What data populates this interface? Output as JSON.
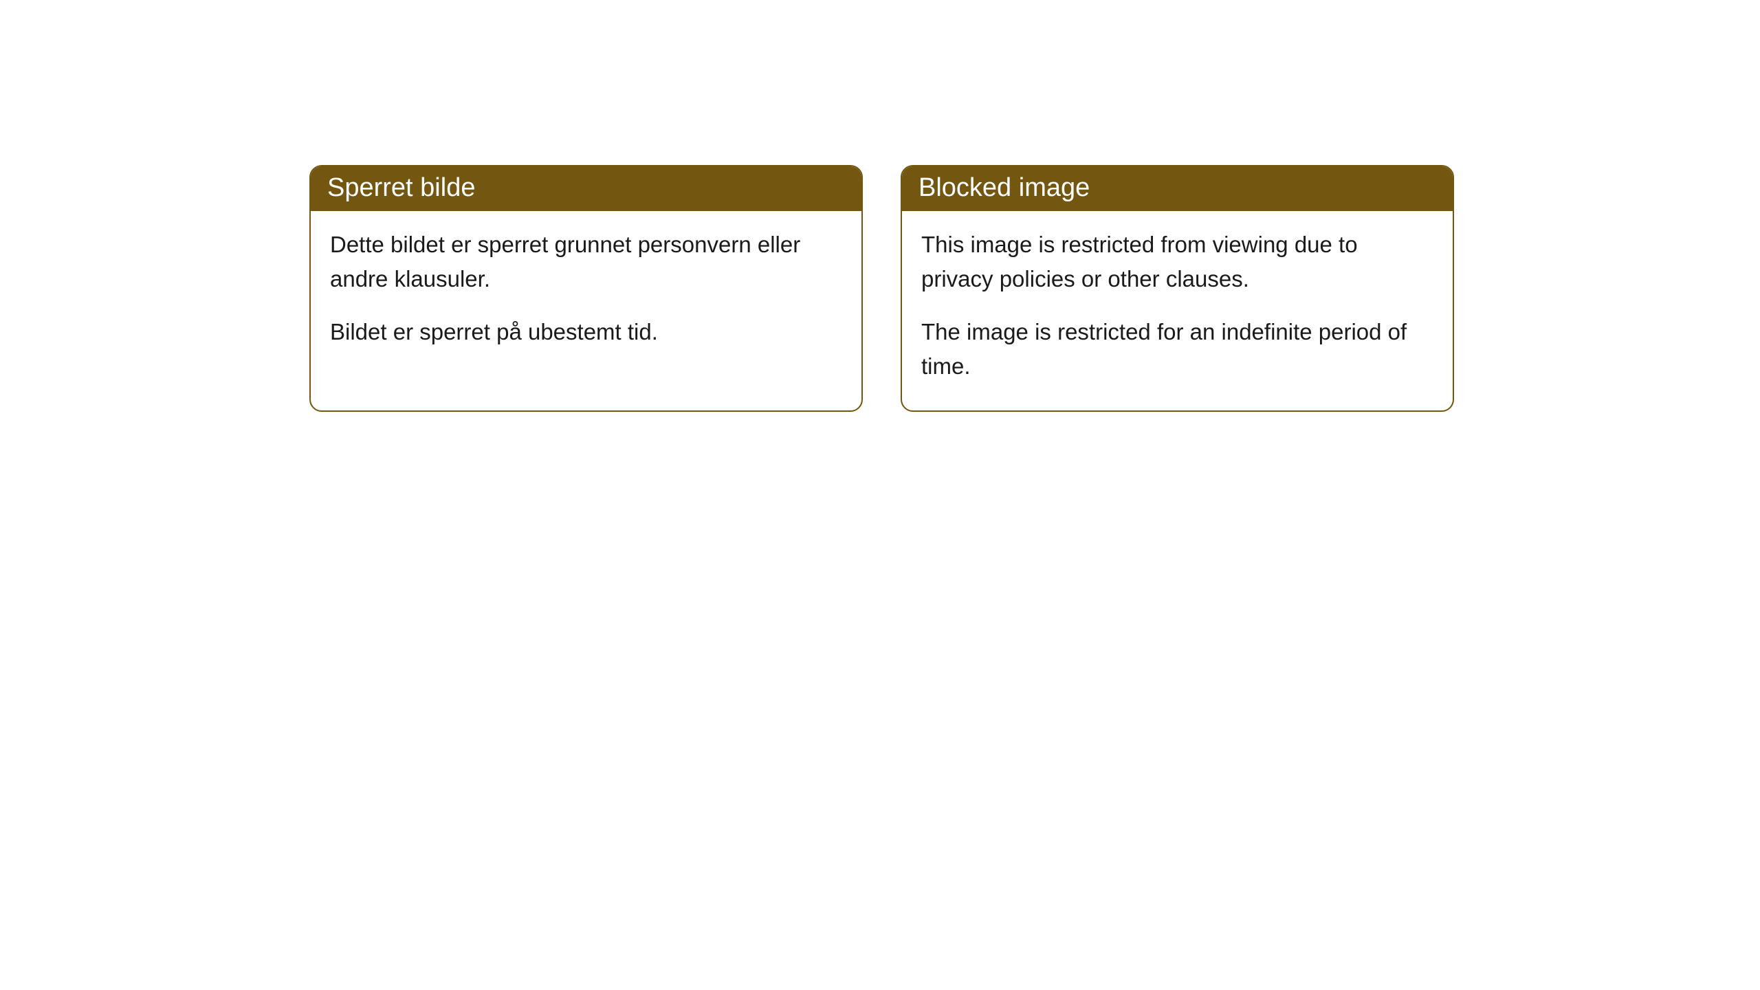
{
  "cards": [
    {
      "title": "Sperret bilde",
      "paragraph1": "Dette bildet er sperret grunnet personvern eller andre klausuler.",
      "paragraph2": "Bildet er sperret på ubestemt tid."
    },
    {
      "title": "Blocked image",
      "paragraph1": "This image is restricted from viewing due to privacy policies or other clauses.",
      "paragraph2": "The image is restricted for an indefinite period of time."
    }
  ],
  "styling": {
    "header_bg_color": "#735610",
    "header_text_color": "#ffffff",
    "border_color": "#735610",
    "body_bg_color": "#ffffff",
    "body_text_color": "#1a1a1a",
    "border_radius": 18,
    "header_fontsize": 38,
    "body_fontsize": 33
  }
}
